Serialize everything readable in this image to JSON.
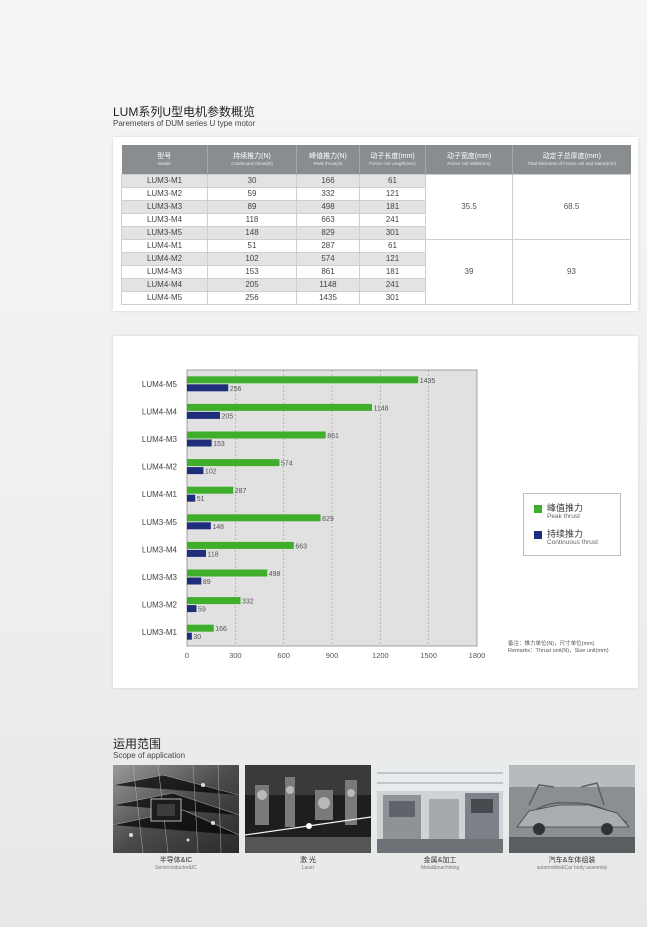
{
  "params_section": {
    "title_cn": "LUM系列U型电机参数概览",
    "title_en": "Paremeters of DUM series U type motor"
  },
  "table": {
    "headers": [
      {
        "cn": "型号",
        "en": "Model"
      },
      {
        "cn": "持续推力(N)",
        "en": "Continuous thrust(N)"
      },
      {
        "cn": "峰值推力(N)",
        "en": "Peak thrust(N)"
      },
      {
        "cn": "动子长度(mm)",
        "en": "Forcer coil Length(mm)"
      },
      {
        "cn": "动子宽度(mm)",
        "en": "Forcer coil width(mm)"
      },
      {
        "cn": "动定子总厚度(mm)",
        "en": "Total thickness of Forcer coil and stator(mm)"
      }
    ],
    "groups": [
      {
        "width": "35.5",
        "thickness": "68.5",
        "rows": [
          {
            "model": "LUM3-M1",
            "cont": "30",
            "peak": "166",
            "length": "61"
          },
          {
            "model": "LUM3-M2",
            "cont": "59",
            "peak": "332",
            "length": "121"
          },
          {
            "model": "LUM3-M3",
            "cont": "89",
            "peak": "498",
            "length": "181"
          },
          {
            "model": "LUM3-M4",
            "cont": "118",
            "peak": "663",
            "length": "241"
          },
          {
            "model": "LUM3-M5",
            "cont": "148",
            "peak": "829",
            "length": "301"
          }
        ]
      },
      {
        "width": "39",
        "thickness": "93",
        "rows": [
          {
            "model": "LUM4-M1",
            "cont": "51",
            "peak": "287",
            "length": "61"
          },
          {
            "model": "LUM4-M2",
            "cont": "102",
            "peak": "574",
            "length": "121"
          },
          {
            "model": "LUM4-M3",
            "cont": "153",
            "peak": "861",
            "length": "181"
          },
          {
            "model": "LUM4-M4",
            "cont": "205",
            "peak": "1148",
            "length": "241"
          },
          {
            "model": "LUM4-M5",
            "cont": "256",
            "peak": "1435",
            "length": "301"
          }
        ]
      }
    ]
  },
  "chart_data": {
    "type": "bar",
    "orientation": "horizontal",
    "categories": [
      "LUM4-M5",
      "LUM4-M4",
      "LUM4-M3",
      "LUM4-M2",
      "LUM4-M1",
      "LUM3-M5",
      "LUM3-M4",
      "LUM3-M3",
      "LUM3-M2",
      "LUM3-M1"
    ],
    "series": [
      {
        "name": "峰值推力",
        "name_en": "Peak thrust",
        "color": "#3fae2a",
        "values": [
          1435,
          1148,
          861,
          574,
          287,
          829,
          663,
          498,
          332,
          166
        ]
      },
      {
        "name": "持续推力",
        "name_en": "Continuous thrust",
        "color": "#1f2e7a",
        "values": [
          256,
          205,
          153,
          102,
          51,
          148,
          118,
          89,
          59,
          30
        ]
      }
    ],
    "xlim": [
      0,
      1800
    ],
    "xticks": [
      "0",
      "300",
      "600",
      "900",
      "1200",
      "1500",
      "1800"
    ],
    "grid": true,
    "legend_position": "right",
    "note_cn": "备注：推力单位(N)，尺寸单位(mm)",
    "note_en": "Remarks：Thrust unit(N)，Size unit(mm)"
  },
  "scope_section": {
    "title_cn": "运用范围",
    "title_en": "Scope of application",
    "items": [
      {
        "cn": "半导体&IC",
        "en": "Semiconductor&IC",
        "icon": "semiconductor-photo"
      },
      {
        "cn": "激  光",
        "en": "Laser",
        "icon": "laser-photo"
      },
      {
        "cn": "金属&加工",
        "en": "Metal&machining",
        "icon": "metal-machining-photo"
      },
      {
        "cn": "汽车&车体组装",
        "en": "automobile&Car body assembly",
        "icon": "car-assembly-photo"
      }
    ]
  }
}
